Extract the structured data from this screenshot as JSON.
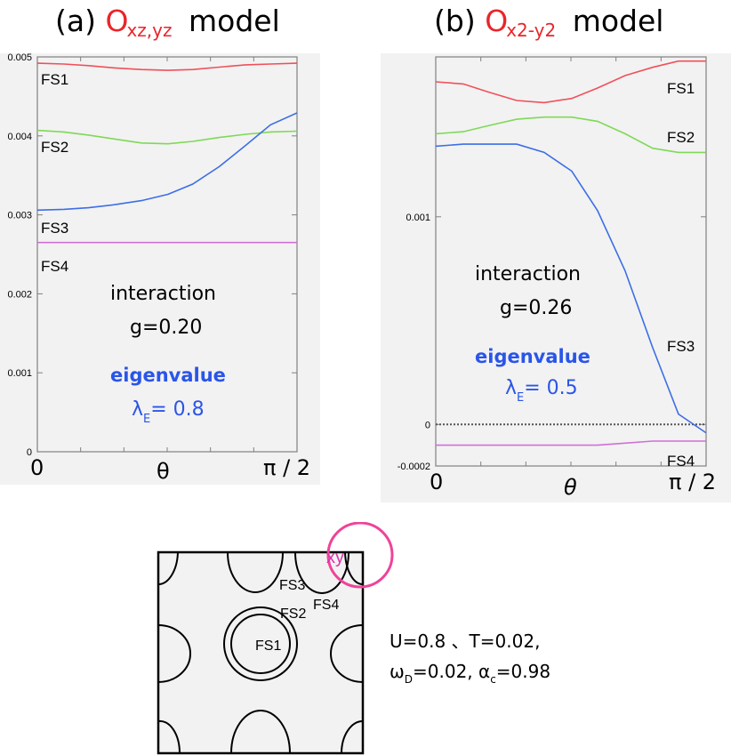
{
  "panel_a": {
    "title_prefix": "(a)",
    "title_o": "O",
    "title_sub": "xz,yz",
    "title_word": "model",
    "interaction_label": "interaction",
    "g_label": "g=0.20",
    "eigen_label": "eigenvalue",
    "lambda_symbol": "λ",
    "lambda_sub": "E",
    "lambda_value": "= 0.8",
    "x_start": "0",
    "x_mid": "θ",
    "x_end": "π / 2"
  },
  "panel_b": {
    "title_prefix": "(b)",
    "title_o": "O",
    "title_sub": "x2-y2",
    "title_word": "model",
    "interaction_label": "interaction",
    "g_label": "g=0.26",
    "eigen_label": "eigenvalue",
    "lambda_symbol": "λ",
    "lambda_sub": "E",
    "lambda_value": "= 0.5",
    "x_start": "0",
    "x_mid": "θ",
    "x_end": "π / 2"
  },
  "fermi_surface": {
    "labels": [
      "FS1",
      "FS2",
      "FS3",
      "FS4"
    ],
    "xy_label": "xy",
    "params_line1": "U=0.8 、T=0.02,",
    "params_w": "ω",
    "params_w_sub": "D",
    "params_mid": "=0.02, α",
    "params_a_sub": "c",
    "params_end": "=0.98"
  },
  "colors": {
    "fs1": "#f0505a",
    "fs2": "#7ed957",
    "fs3": "#3c6ee6",
    "fs4": "#d070d8",
    "accent_red": "#e8262a",
    "accent_blue": "#2a55e8",
    "circle": "#ee4499"
  },
  "chart_data": [
    {
      "type": "line",
      "title": "(a) O xz,yz model",
      "xlabel": "θ",
      "ylabel": "",
      "xlim": [
        0,
        1.5708
      ],
      "ylim": [
        0,
        0.005
      ],
      "y_ticks": [
        "0.005",
        "0.004",
        "0.003",
        "0.002",
        "0.001",
        "0"
      ],
      "y_tick_values": [
        0.005,
        0.004,
        0.003,
        0.002,
        0.001,
        0
      ],
      "x": [
        0,
        0.16,
        0.31,
        0.47,
        0.63,
        0.79,
        0.94,
        1.1,
        1.26,
        1.41,
        1.57
      ],
      "series": [
        {
          "name": "FS1",
          "color": "#f0505a",
          "values": [
            0.00492,
            0.00491,
            0.00489,
            0.00486,
            0.00484,
            0.00483,
            0.00484,
            0.00487,
            0.0049,
            0.00491,
            0.00492
          ]
        },
        {
          "name": "FS2",
          "color": "#7ed957",
          "values": [
            0.00407,
            0.00405,
            0.00401,
            0.00396,
            0.00391,
            0.0039,
            0.00393,
            0.00398,
            0.00402,
            0.00405,
            0.00406
          ]
        },
        {
          "name": "FS3",
          "color": "#3c6ee6",
          "values": [
            0.00306,
            0.00307,
            0.00309,
            0.00313,
            0.00318,
            0.00326,
            0.00339,
            0.00361,
            0.00388,
            0.00414,
            0.00429
          ]
        },
        {
          "name": "FS4",
          "color": "#d070d8",
          "values": [
            0.00265,
            0.00265,
            0.00265,
            0.00265,
            0.00265,
            0.00265,
            0.00265,
            0.00265,
            0.00265,
            0.00265,
            0.00265
          ]
        }
      ],
      "series_labels": [
        "FS1",
        "FS2",
        "FS3",
        "FS4"
      ]
    },
    {
      "type": "line",
      "title": "(b) O x2-y2 model",
      "xlabel": "θ",
      "ylabel": "",
      "xlim": [
        0,
        1.5708
      ],
      "ylim": [
        -0.0002,
        0.00177
      ],
      "y_ticks": [
        "0.001",
        "0",
        "-0.0002"
      ],
      "y_tick_values": [
        0.001,
        0,
        -0.0002
      ],
      "x": [
        0,
        0.16,
        0.31,
        0.47,
        0.63,
        0.79,
        0.94,
        1.1,
        1.26,
        1.41,
        1.57
      ],
      "series": [
        {
          "name": "FS1",
          "color": "#f0505a",
          "values": [
            0.00165,
            0.00164,
            0.0016,
            0.00156,
            0.00155,
            0.00157,
            0.00162,
            0.00168,
            0.00172,
            0.00175,
            0.00175
          ]
        },
        {
          "name": "FS2",
          "color": "#7ed957",
          "values": [
            0.0014,
            0.00141,
            0.00144,
            0.00147,
            0.00148,
            0.00148,
            0.00146,
            0.0014,
            0.00133,
            0.00131,
            0.00131
          ]
        },
        {
          "name": "FS3",
          "color": "#3c6ee6",
          "values": [
            0.00134,
            0.00135,
            0.00135,
            0.00135,
            0.00131,
            0.00122,
            0.00103,
            0.00074,
            0.00037,
            5e-05,
            -4e-05
          ]
        },
        {
          "name": "FS4",
          "color": "#d070d8",
          "values": [
            -0.0001,
            -0.0001,
            -0.0001,
            -0.0001,
            -0.0001,
            -0.0001,
            -0.0001,
            -9e-05,
            -8e-05,
            -8e-05,
            -8e-05
          ]
        }
      ],
      "zero_line": true,
      "series_labels": [
        "FS1",
        "FS2",
        "FS3",
        "FS4"
      ]
    }
  ]
}
